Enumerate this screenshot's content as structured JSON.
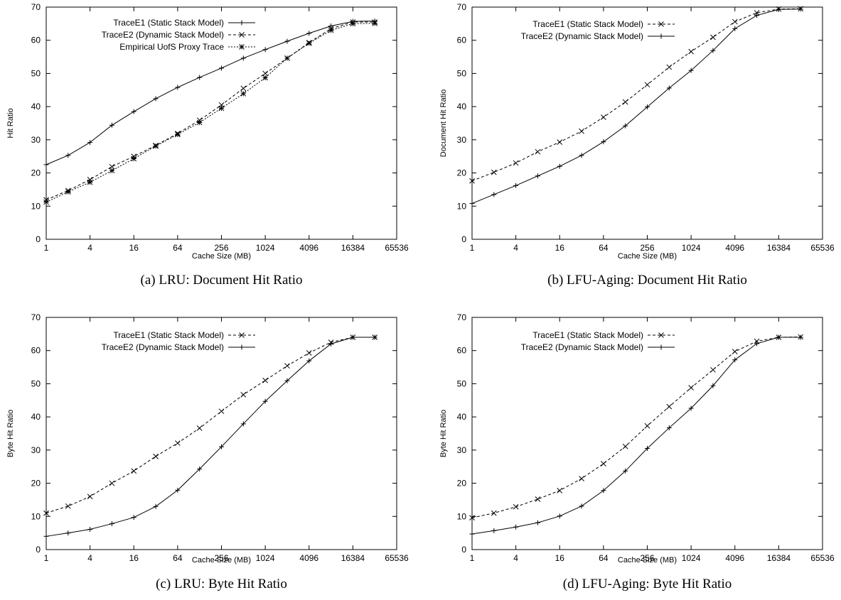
{
  "chart_data": [
    {
      "type": "line",
      "caption": "(a) LRU: Document Hit Ratio",
      "xlabel": "Cache Size (MB)",
      "ylabel": "Hit Ratio",
      "x_scale": "log2",
      "xlim": [
        1,
        65536
      ],
      "ylim": [
        0,
        70
      ],
      "xticks": [
        1,
        4,
        16,
        64,
        256,
        1024,
        4096,
        16384,
        65536
      ],
      "yticks": [
        0,
        10,
        20,
        30,
        40,
        50,
        60,
        70
      ],
      "grid": false,
      "legend_position": "top-left",
      "x": [
        1,
        2,
        4,
        8,
        16,
        32,
        64,
        128,
        256,
        512,
        1024,
        2048,
        4096,
        8192,
        16384,
        32768
      ],
      "series": [
        {
          "name": "TraceE1 (Static Stack Model)",
          "marker": "plus",
          "dash": "solid",
          "values": [
            22.5,
            25.3,
            29.2,
            34.4,
            38.5,
            42.4,
            45.8,
            48.8,
            51.6,
            54.6,
            57.2,
            59.7,
            62.1,
            64.3,
            65.7,
            65.8
          ]
        },
        {
          "name": "TraceE2 (Dynamic Stack Model)",
          "marker": "cross",
          "dash": "dashed",
          "values": [
            11.9,
            14.7,
            18.0,
            21.9,
            25.0,
            28.3,
            31.9,
            35.9,
            40.5,
            45.5,
            50.0,
            54.6,
            59.3,
            63.5,
            65.5,
            65.5
          ]
        },
        {
          "name": "Empirical UofS Proxy Trace",
          "marker": "star",
          "dash": "dotted",
          "values": [
            11.2,
            14.3,
            17.2,
            20.7,
            24.3,
            28.1,
            31.6,
            35.2,
            39.5,
            43.9,
            48.7,
            54.6,
            59.1,
            63.0,
            65.0,
            65.1
          ]
        }
      ]
    },
    {
      "type": "line",
      "caption": "(b) LFU-Aging: Document Hit Ratio",
      "xlabel": "Cache Size (MB)",
      "ylabel": "Document Hit Ratio",
      "x_scale": "log2",
      "xlim": [
        1,
        65536
      ],
      "ylim": [
        0,
        70
      ],
      "xticks": [
        1,
        4,
        16,
        64,
        256,
        1024,
        4096,
        16384,
        65536
      ],
      "yticks": [
        0,
        10,
        20,
        30,
        40,
        50,
        60,
        70
      ],
      "grid": false,
      "legend_position": "top-left",
      "x": [
        1,
        2,
        4,
        8,
        16,
        32,
        64,
        128,
        256,
        512,
        1024,
        2048,
        4096,
        8192,
        16384,
        32768
      ],
      "series": [
        {
          "name": "TraceE1  (Static Stack Model)",
          "marker": "cross",
          "dash": "dashed",
          "values": [
            17.6,
            20.2,
            23.0,
            26.4,
            29.3,
            32.6,
            36.8,
            41.4,
            46.6,
            51.9,
            56.6,
            60.9,
            65.6,
            68.3,
            69.4,
            69.5
          ]
        },
        {
          "name": "TraceE2 (Dynamic Stack Model)",
          "marker": "plus",
          "dash": "solid",
          "values": [
            10.8,
            13.5,
            16.2,
            19.1,
            22.0,
            25.3,
            29.4,
            34.2,
            39.9,
            45.6,
            50.9,
            56.9,
            63.5,
            67.5,
            69.3,
            69.4
          ]
        }
      ]
    },
    {
      "type": "line",
      "caption": "(c) LRU: Byte Hit Ratio",
      "xlabel": "Cache Size (MB)",
      "ylabel": "Byte Hit Ratio",
      "x_scale": "log2",
      "xlim": [
        1,
        65536
      ],
      "ylim": [
        0,
        70
      ],
      "xticks": [
        1,
        4,
        16,
        64,
        256,
        1024,
        4096,
        16384,
        65536
      ],
      "yticks": [
        0,
        10,
        20,
        30,
        40,
        50,
        60,
        70
      ],
      "grid": false,
      "legend_position": "top-left",
      "x": [
        1,
        2,
        4,
        8,
        16,
        32,
        64,
        128,
        256,
        512,
        1024,
        2048,
        4096,
        8192,
        16384,
        32768
      ],
      "series": [
        {
          "name": "TraceE1  (Static Stack Model)",
          "marker": "cross",
          "dash": "dashed",
          "values": [
            11.0,
            13.1,
            16.0,
            20.0,
            23.7,
            28.1,
            32.1,
            36.6,
            41.7,
            46.7,
            51.0,
            55.4,
            59.3,
            62.5,
            64.0,
            64.0
          ]
        },
        {
          "name": "TraceE2 (Dynamic Stack Model)",
          "marker": "plus",
          "dash": "solid",
          "values": [
            4.0,
            5.0,
            6.1,
            7.8,
            9.7,
            13.0,
            17.9,
            24.3,
            31.0,
            37.9,
            44.7,
            50.9,
            56.9,
            62.0,
            64.0,
            64.0
          ]
        }
      ]
    },
    {
      "type": "line",
      "caption": "(d) LFU-Aging: Byte Hit Ratio",
      "xlabel": "Cache Size (MB)",
      "ylabel": "Byte Hit Ratio",
      "x_scale": "log2",
      "xlim": [
        1,
        65536
      ],
      "ylim": [
        0,
        70
      ],
      "xticks": [
        1,
        4,
        16,
        64,
        256,
        1024,
        4096,
        16384,
        65536
      ],
      "yticks": [
        0,
        10,
        20,
        30,
        40,
        50,
        60,
        70
      ],
      "grid": false,
      "legend_position": "top-left",
      "x": [
        1,
        2,
        4,
        8,
        16,
        32,
        64,
        128,
        256,
        512,
        1024,
        2048,
        4096,
        8192,
        16384,
        32768
      ],
      "series": [
        {
          "name": "TraceE1  (Static Stack Model)",
          "marker": "cross",
          "dash": "dashed",
          "values": [
            9.6,
            11.0,
            12.9,
            15.2,
            17.8,
            21.4,
            25.9,
            31.1,
            37.3,
            43.1,
            48.8,
            54.2,
            59.7,
            62.8,
            64.0,
            64.1
          ]
        },
        {
          "name": "TraceE2 (Dynamic Stack Model)",
          "marker": "plus",
          "dash": "solid",
          "values": [
            4.7,
            5.7,
            6.8,
            8.1,
            10.1,
            13.1,
            17.8,
            23.7,
            30.5,
            36.7,
            42.6,
            49.4,
            57.2,
            62.1,
            64.0,
            64.0
          ]
        }
      ]
    }
  ]
}
